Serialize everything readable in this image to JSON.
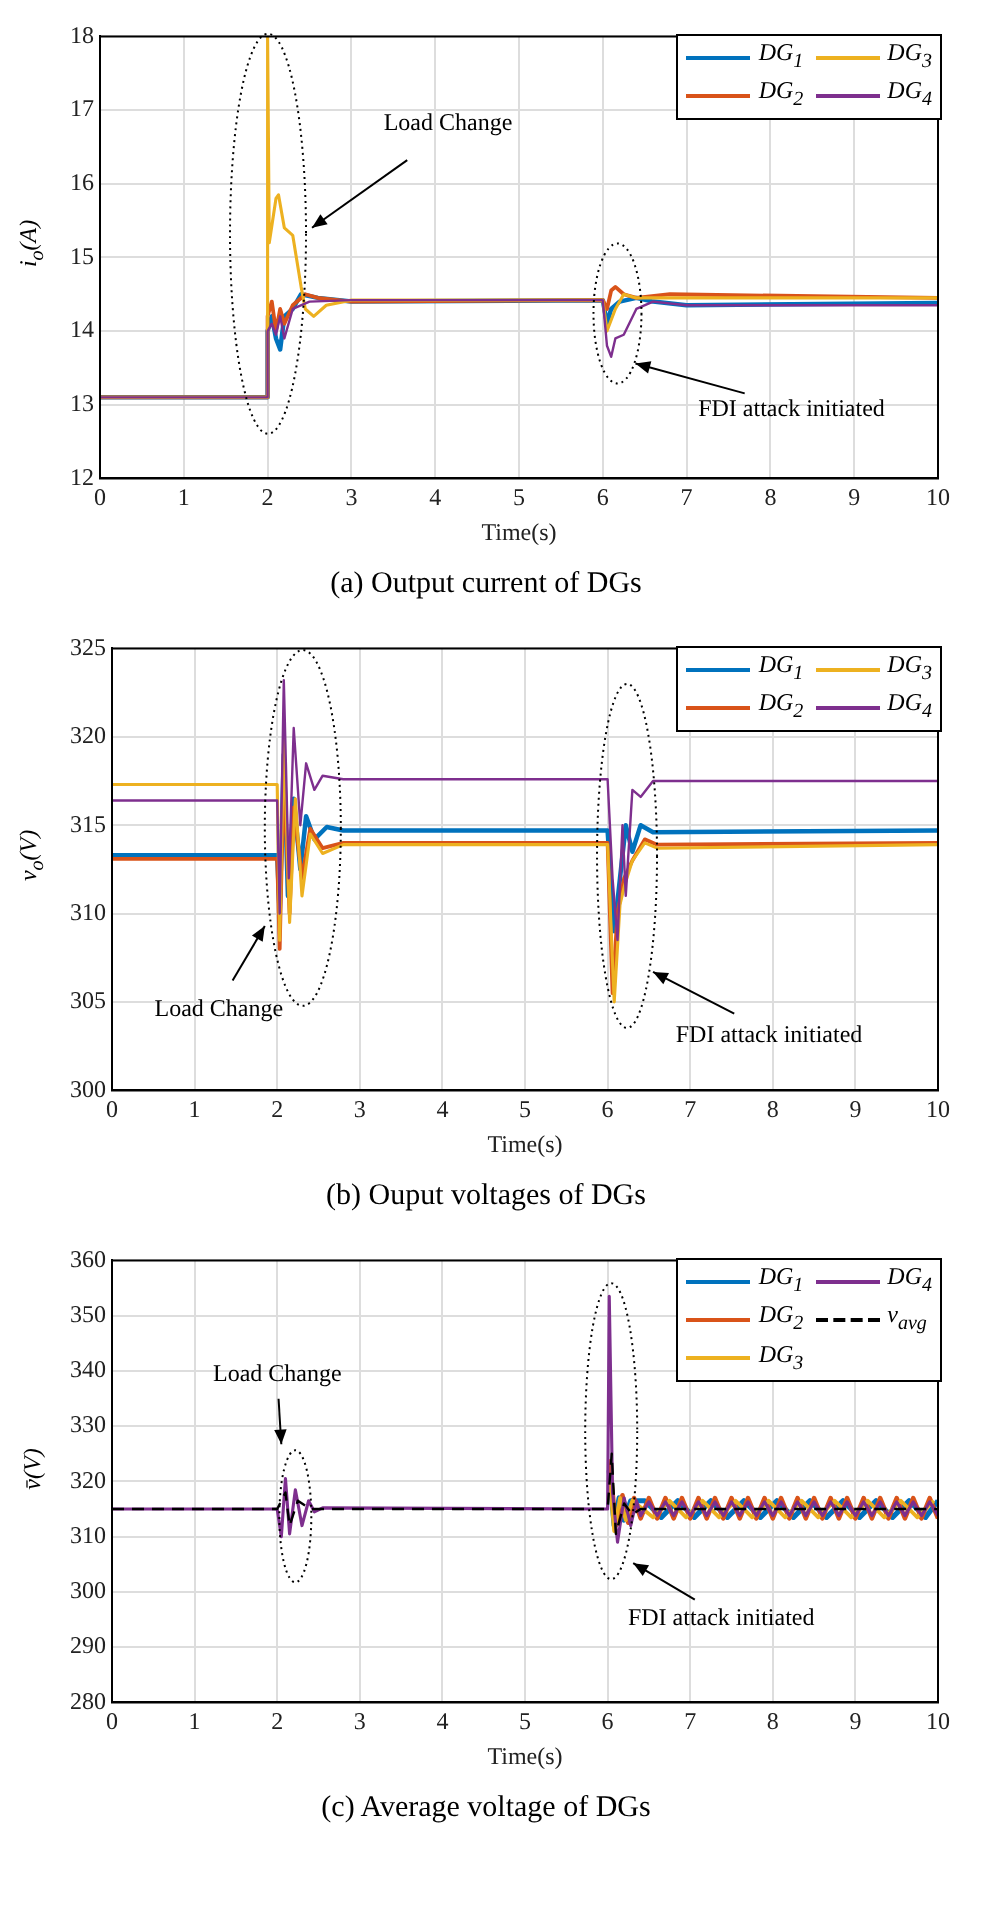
{
  "chart_data": [
    {
      "type": "line",
      "title": "(a) Output current of DGs",
      "xlabel": "Time(s)",
      "ylabel": "i$_{o}$(A)",
      "xlim": [
        0,
        10
      ],
      "ylim": [
        12,
        18
      ],
      "xticks": [
        0,
        1,
        2,
        3,
        4,
        5,
        6,
        7,
        8,
        9,
        10
      ],
      "yticks": [
        12,
        13,
        14,
        15,
        16,
        17,
        18
      ],
      "grid": true,
      "legend": "top right",
      "annotations": [
        "Load Change",
        "FDI attack initiated"
      ],
      "series": [
        {
          "name": "DG$_{1}$",
          "color": "#0072bd",
          "x": [
            0,
            1.99,
            2,
            2.05,
            2.1,
            2.15,
            2.2,
            2.3,
            2.4,
            2.6,
            3,
            6,
            6.05,
            6.1,
            6.2,
            6.4,
            6.6,
            7,
            10
          ],
          "values": [
            13.1,
            13.1,
            14.0,
            14.2,
            13.9,
            13.75,
            14.2,
            14.3,
            14.5,
            14.45,
            14.4,
            14.42,
            14.1,
            14.3,
            14.4,
            14.45,
            14.4,
            14.35,
            14.38
          ]
        },
        {
          "name": "DG$_{2}$",
          "color": "#d95319",
          "x": [
            0,
            1.99,
            2,
            2.05,
            2.1,
            2.15,
            2.2,
            2.3,
            2.45,
            2.6,
            3,
            6,
            6.05,
            6.1,
            6.15,
            6.25,
            6.4,
            6.8,
            10
          ],
          "values": [
            13.1,
            13.1,
            14.2,
            14.4,
            14.0,
            14.3,
            14.1,
            14.35,
            14.5,
            14.45,
            14.4,
            14.42,
            14.3,
            14.55,
            14.6,
            14.5,
            14.45,
            14.5,
            14.45
          ]
        },
        {
          "name": "DG$_{3}$",
          "color": "#edb120",
          "x": [
            0,
            1.99,
            2,
            2.02,
            2.1,
            2.13,
            2.2,
            2.3,
            2.4,
            2.45,
            2.55,
            2.7,
            3,
            6,
            6.05,
            6.15,
            6.25,
            6.4,
            10
          ],
          "values": [
            13.1,
            13.1,
            18,
            15.2,
            15.8,
            15.85,
            15.4,
            15.3,
            14.6,
            14.3,
            14.2,
            14.35,
            14.42,
            14.42,
            14.0,
            14.3,
            14.5,
            14.45,
            14.45
          ]
        },
        {
          "name": "DG$_{4}$",
          "color": "#7e2f8e",
          "x": [
            0,
            1.99,
            2,
            2.05,
            2.1,
            2.15,
            2.2,
            2.3,
            2.5,
            3,
            6,
            6.05,
            6.1,
            6.15,
            6.25,
            6.4,
            6.6,
            7,
            10
          ],
          "values": [
            13.1,
            13.1,
            14.0,
            14.1,
            13.95,
            14.2,
            13.9,
            14.3,
            14.4,
            14.42,
            14.42,
            13.8,
            13.65,
            13.9,
            13.95,
            14.3,
            14.4,
            14.35,
            14.35
          ]
        }
      ]
    },
    {
      "type": "line",
      "title": "(b) Ouput voltages of DGs",
      "xlabel": "Time(s)",
      "ylabel": "v$_{o}$(V)",
      "xlim": [
        0,
        10
      ],
      "ylim": [
        300,
        325
      ],
      "xticks": [
        0,
        1,
        2,
        3,
        4,
        5,
        6,
        7,
        8,
        9,
        10
      ],
      "yticks": [
        300,
        305,
        310,
        315,
        320,
        325
      ],
      "grid": true,
      "legend": "top right",
      "annotations": [
        "Load Change",
        "FDI attack initiated"
      ],
      "series": [
        {
          "name": "DG$_{1}$",
          "color": "#0072bd",
          "x": [
            0,
            2,
            2.03,
            2.08,
            2.13,
            2.2,
            2.28,
            2.35,
            2.45,
            2.6,
            2.8,
            6,
            6.08,
            6.15,
            6.22,
            6.3,
            6.4,
            6.55,
            10
          ],
          "values": [
            313.3,
            313.3,
            310,
            319,
            311,
            316.5,
            312.5,
            315.5,
            314.2,
            314.9,
            314.7,
            314.7,
            309,
            312,
            315,
            313.5,
            315,
            314.6,
            314.7
          ]
        },
        {
          "name": "DG$_{2}$",
          "color": "#d95319",
          "x": [
            0,
            2,
            2.03,
            2.08,
            2.15,
            2.2,
            2.3,
            2.4,
            2.55,
            2.8,
            6,
            6.06,
            6.12,
            6.2,
            6.3,
            6.45,
            6.6,
            10
          ],
          "values": [
            313.1,
            313.1,
            308,
            318,
            310,
            316,
            312,
            314.8,
            313.7,
            314,
            314,
            305.5,
            310,
            312,
            313,
            314.2,
            313.9,
            314
          ]
        },
        {
          "name": "DG$_{3}$",
          "color": "#edb120",
          "x": [
            0,
            2,
            2.03,
            2.08,
            2.15,
            2.22,
            2.3,
            2.4,
            2.55,
            2.8,
            6,
            6.08,
            6.15,
            6.2,
            6.3,
            6.45,
            6.6,
            10
          ],
          "values": [
            317.3,
            317.3,
            308.5,
            320,
            309.5,
            316.5,
            311,
            314.5,
            313.4,
            313.9,
            313.9,
            305,
            310.5,
            311.5,
            313,
            314,
            313.7,
            313.9
          ]
        },
        {
          "name": "DG$_{4}$",
          "color": "#7e2f8e",
          "x": [
            0,
            2,
            2.03,
            2.08,
            2.14,
            2.2,
            2.28,
            2.35,
            2.45,
            2.55,
            2.8,
            6,
            6.06,
            6.12,
            6.18,
            6.22,
            6.3,
            6.4,
            6.55,
            10
          ],
          "values": [
            316.4,
            316.4,
            310,
            323.2,
            312,
            320.5,
            315,
            318.5,
            317,
            317.8,
            317.6,
            317.6,
            312,
            308.5,
            315,
            311,
            317,
            316.6,
            317.5,
            317.5
          ]
        }
      ]
    },
    {
      "type": "line",
      "title": "(c) Average voltage of DGs",
      "xlabel": "Time(s)",
      "ylabel": "v̄(V)",
      "xlim": [
        0,
        10
      ],
      "ylim": [
        280,
        360
      ],
      "xticks": [
        0,
        1,
        2,
        3,
        4,
        5,
        6,
        7,
        8,
        9,
        10
      ],
      "yticks": [
        280,
        290,
        300,
        310,
        320,
        330,
        340,
        350,
        360
      ],
      "grid": true,
      "legend": "top right",
      "annotations": [
        "Load Change",
        "FDI attack initiated"
      ],
      "series": [
        {
          "name": "DG$_{1}$",
          "color": "#0072bd",
          "x": [
            6.02,
            6.08,
            6.14,
            6.2,
            6.28,
            6.45,
            6.65,
            6.85,
            7.05,
            7.25,
            7.45,
            7.65,
            7.85,
            8.05,
            8.25,
            8.45,
            8.65,
            8.85,
            9.05,
            9.25,
            9.45,
            9.65,
            9.85,
            10
          ],
          "values": [
            322,
            312,
            317,
            313,
            316.5,
            316.5,
            313.5,
            316.5,
            313.5,
            316.5,
            313.5,
            316.5,
            313.5,
            316.5,
            313.5,
            316.5,
            313.5,
            316.5,
            313.5,
            316.5,
            313.5,
            316.5,
            313.5,
            316.5
          ]
        },
        {
          "name": "DG$_{2}$",
          "color": "#d95319",
          "x": [
            6.02,
            6.1,
            6.18,
            6.25,
            6.32,
            6.4,
            6.5,
            6.6,
            6.7,
            6.8,
            6.9,
            7,
            7.1,
            7.2,
            7.3,
            7.4,
            7.5,
            7.6,
            7.7,
            7.8,
            7.9,
            8,
            8.1,
            8.2,
            8.3,
            8.4,
            8.5,
            8.6,
            8.7,
            8.8,
            8.9,
            9,
            9.1,
            9.2,
            9.3,
            9.4,
            9.5,
            9.6,
            9.7,
            9.8,
            9.9,
            10
          ],
          "values": [
            324,
            312,
            317.5,
            312.5,
            317,
            313.3,
            317,
            313.3,
            317,
            313.3,
            317,
            313.3,
            317,
            313.3,
            317,
            313.3,
            317,
            313.3,
            317,
            313.3,
            317,
            313.3,
            317,
            313.3,
            317,
            313.3,
            317,
            313.3,
            317,
            313.3,
            317,
            313.3,
            317,
            313.3,
            317,
            313.3,
            317,
            313.3,
            317,
            313.3,
            317,
            313.3
          ]
        },
        {
          "name": "DG$_{3}$",
          "color": "#edb120",
          "x": [
            6.02,
            6.08,
            6.15,
            6.22,
            6.3,
            6.55,
            6.75,
            6.95,
            7.15,
            7.35,
            7.55,
            7.75,
            7.95,
            8.15,
            8.35,
            8.55,
            8.75,
            8.95,
            9.15,
            9.35,
            9.55,
            9.75,
            9.95
          ],
          "values": [
            321,
            311,
            317,
            313,
            316.5,
            313.5,
            316.5,
            313.5,
            316.5,
            313.5,
            316.5,
            313.5,
            316.5,
            313.5,
            316.5,
            313.5,
            316.5,
            313.5,
            316.5,
            313.5,
            316.5,
            313.5,
            316.5
          ]
        },
        {
          "name": "DG$_{4}$",
          "color": "#7e2f8e",
          "x": [
            0,
            2,
            2.05,
            2.1,
            2.15,
            2.22,
            2.3,
            2.38,
            2.45,
            2.55,
            6,
            6.02,
            6.06,
            6.12,
            6.2,
            6.28,
            6.35,
            6.4,
            6.5,
            6.6,
            6.7,
            6.8,
            6.9,
            7,
            7.1,
            7.2,
            7.3,
            7.4,
            7.5,
            7.6,
            7.7,
            7.8,
            7.9,
            8,
            8.1,
            8.2,
            8.3,
            8.4,
            8.5,
            8.6,
            8.7,
            8.8,
            8.9,
            9,
            9.1,
            9.2,
            9.3,
            9.4,
            9.5,
            9.6,
            9.7,
            9.8,
            9.9,
            10
          ],
          "values": [
            315,
            315,
            310,
            320.5,
            310.5,
            318.5,
            312,
            316.5,
            314.5,
            315.2,
            315,
            353.5,
            318,
            309,
            317,
            312,
            316.5,
            313.8,
            316.3,
            313.8,
            316.3,
            313.8,
            316.3,
            313.8,
            316.3,
            313.8,
            316.3,
            313.8,
            316.3,
            313.8,
            316.3,
            313.8,
            316.3,
            313.8,
            316.3,
            313.8,
            316.3,
            313.8,
            316.3,
            313.8,
            316.3,
            313.8,
            316.3,
            313.8,
            316.3,
            313.8,
            316.3,
            313.8,
            316.3,
            313.8,
            316.3,
            313.8,
            316.3,
            313.8
          ]
        },
        {
          "name": "v$_{avg}$",
          "color": "#000000",
          "line_style": "dashed",
          "x": [
            0,
            2,
            2.1,
            2.15,
            2.25,
            2.4,
            6,
            6.05,
            6.1,
            6.2,
            6.3,
            6.4,
            10
          ],
          "values": [
            315,
            315,
            318,
            312,
            316.5,
            315,
            315,
            325,
            310.5,
            316,
            314,
            315,
            315
          ]
        }
      ]
    }
  ]
}
